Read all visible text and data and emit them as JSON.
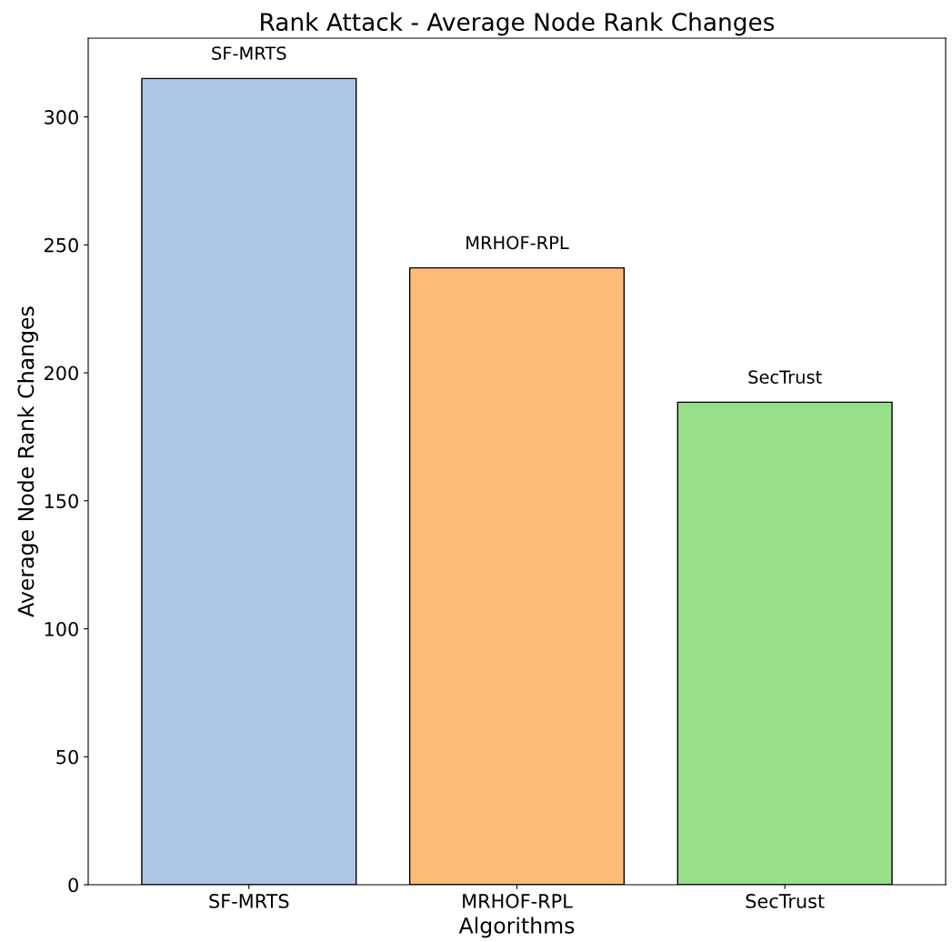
{
  "chart_data": {
    "type": "bar",
    "title": "Rank Attack - Average Node Rank Changes",
    "xlabel": "Algorithms",
    "ylabel": "Average Node Rank Changes",
    "categories": [
      "SF-MRTS",
      "MRHOF-RPL",
      "SecTrust"
    ],
    "values": [
      315,
      241,
      188.5
    ],
    "colors": [
      "#aec7e8",
      "#ffbb78",
      "#98df8a"
    ],
    "ylim": [
      0,
      330.75
    ],
    "yticks": [
      0,
      50,
      100,
      150,
      200,
      250,
      300
    ],
    "grid": false,
    "annotations": [
      {
        "text": "SF-MRTS",
        "x": "SF-MRTS",
        "y": 315
      },
      {
        "text": "MRHOF-RPL",
        "x": "MRHOF-RPL",
        "y": 241
      },
      {
        "text": "SecTrust",
        "x": "SecTrust",
        "y": 188.5
      }
    ]
  }
}
